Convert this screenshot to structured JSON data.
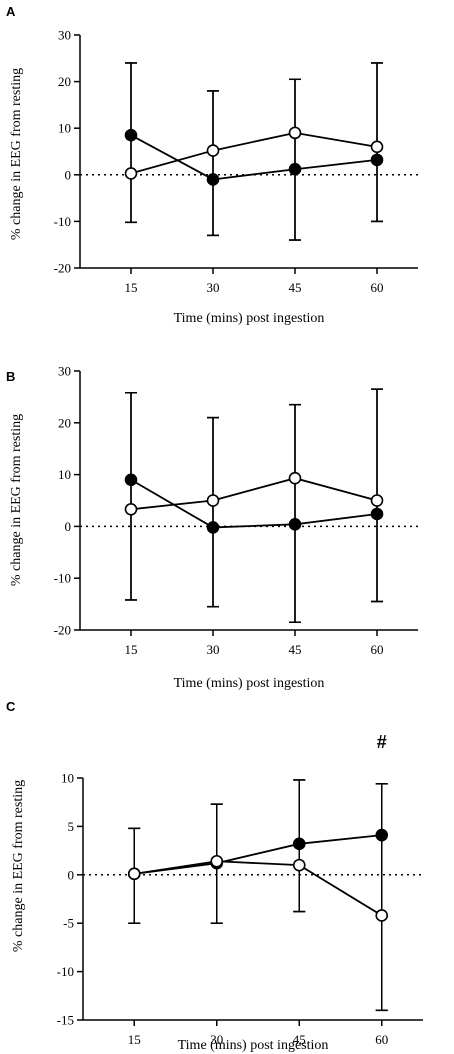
{
  "chart_data": [
    {
      "panel": "A",
      "type": "line",
      "x": [
        15,
        30,
        45,
        60
      ],
      "xlabel": "Time (mins) post ingestion",
      "ylabel": "% change in EEG from resting",
      "ylim": [
        -20,
        30
      ],
      "yticks": [
        30,
        20,
        10,
        0,
        -10,
        -20
      ],
      "zero_line": "dotted",
      "series": [
        {
          "marker": "filled-circle",
          "values": [
            8.5,
            -1,
            1.2,
            3.2
          ],
          "err_upper": [
            24,
            18,
            20.5,
            24
          ],
          "err_lower": [
            -10.2,
            -13,
            -14,
            -10
          ]
        },
        {
          "marker": "open-circle",
          "values": [
            0.3,
            5.2,
            9,
            6
          ],
          "err_upper": [
            24,
            18,
            20.5,
            24
          ],
          "err_lower": [
            -10.2,
            -13,
            -14,
            -10
          ]
        }
      ]
    },
    {
      "panel": "B",
      "type": "line",
      "x": [
        15,
        30,
        45,
        60
      ],
      "xlabel": "Time (mins) post ingestion",
      "ylabel": "% change in EEG from resting",
      "ylim": [
        -20,
        30
      ],
      "yticks": [
        30,
        20,
        10,
        0,
        -10,
        -20
      ],
      "zero_line": "dotted",
      "series": [
        {
          "marker": "filled-circle",
          "values": [
            9,
            -0.2,
            0.4,
            2.4
          ],
          "err_upper": [
            25.8,
            21,
            23.5,
            26.5
          ],
          "err_lower": [
            -14.2,
            -15.5,
            -18.5,
            -14.5
          ]
        },
        {
          "marker": "open-circle",
          "values": [
            3.3,
            5,
            9.3,
            5
          ],
          "err_upper": [
            25.8,
            21,
            23.5,
            26.5
          ],
          "err_lower": [
            -14.2,
            -15.5,
            -18.5,
            -14.5
          ]
        }
      ]
    },
    {
      "panel": "C",
      "type": "line",
      "x": [
        15,
        30,
        45,
        60
      ],
      "xlabel": "Time (mins) post ingestion",
      "ylabel": "% change in EEG from resting",
      "ylim": [
        -15,
        10
      ],
      "yticks": [
        10,
        5,
        0,
        -5,
        -10,
        -15
      ],
      "ytick_labels": [
        "10",
        "5",
        "0",
        "-5",
        "-10",
        "-15"
      ],
      "zero_line": "dotted",
      "annotation": {
        "text": "#",
        "x": 60
      },
      "series": [
        {
          "marker": "filled-circle",
          "values": [
            0.1,
            1.2,
            3.2,
            4.1
          ],
          "err_upper": [
            4.8,
            7.3,
            9.8,
            9.4
          ],
          "err_lower": [
            -5,
            -5,
            -3.8,
            -14
          ]
        },
        {
          "marker": "open-circle",
          "values": [
            0.1,
            1.4,
            1,
            -4.2
          ],
          "err_upper": [
            4.8,
            7.3,
            9.8,
            9.4
          ],
          "err_lower": [
            -5,
            -5,
            -3.8,
            -14
          ]
        }
      ]
    }
  ]
}
